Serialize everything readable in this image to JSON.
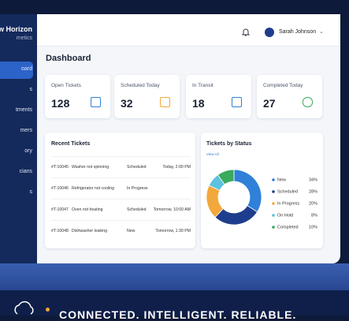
{
  "brand": {
    "line1": "w Horizon",
    "line2": "metics"
  },
  "sidebar": [
    "oard",
    "s",
    "tments",
    "mers",
    "ory",
    "cians",
    "s"
  ],
  "header": {
    "user": "Sarah Johnson",
    "title": "Dashboard"
  },
  "stats": [
    {
      "label": "Open Tickets",
      "value": "128"
    },
    {
      "label": "Scheduled Today",
      "value": "32"
    },
    {
      "label": "In Transit",
      "value": "18"
    },
    {
      "label": "Completed Today",
      "value": "27"
    }
  ],
  "recent_tickets": {
    "title": "Recent Tickets",
    "rows": [
      [
        "#T-10045",
        "Washer not spinning",
        "Scheduled",
        "Today, 2:00 PM"
      ],
      [
        "#T-10046",
        "Refrigerator not cooling",
        "In Progress",
        null
      ],
      [
        "#T-10047",
        "Oven not heating",
        "Scheduled",
        "Tomorrow, 10:00 AM"
      ],
      [
        "#T-10048",
        "Dishwasher leaking",
        "New",
        "Tomorrow, 1:30 PM"
      ]
    ]
  },
  "status_chart": {
    "type": "pie",
    "title": "Tickets by Status",
    "link": "View All",
    "categories": [
      "New",
      "Scheduled",
      "In Progress",
      "On Hold",
      "Completed"
    ],
    "values": [
      34,
      28,
      20,
      8,
      10
    ],
    "value_labels": [
      "34%",
      "28%",
      "20%",
      "8%",
      "10%"
    ],
    "colors": [
      "#2f80d8",
      "#1e3d8c",
      "#f2a83a",
      "#5cc2e0",
      "#3aaa5c"
    ]
  },
  "banner": "CONNECTED. INTELLIGENT. RELIABLE."
}
